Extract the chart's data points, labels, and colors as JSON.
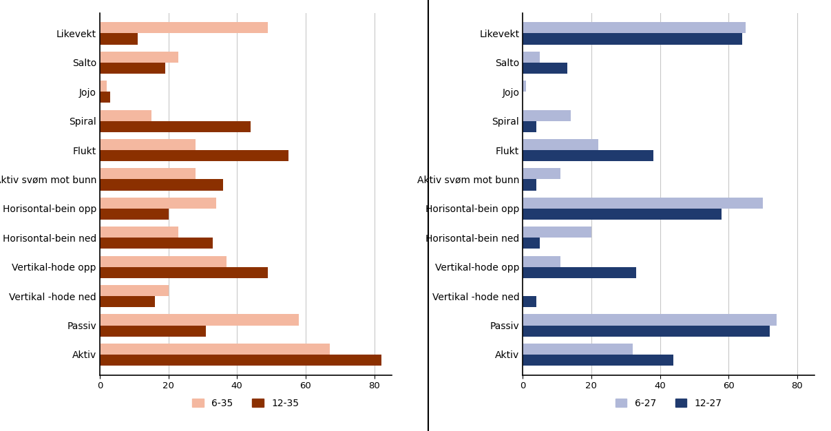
{
  "categories": [
    "Aktiv",
    "Passiv",
    "Vertikal -hode ned",
    "Vertikal-hode opp",
    "Horisontal-bein ned",
    "Horisontal-bein opp",
    "Aktiv svøm mot bunn",
    "Flukt",
    "Spiral",
    "Jojo",
    "Salto",
    "Likevekt"
  ],
  "left": {
    "series1_label": "6-35",
    "series2_label": "12-35",
    "series1_color": "#f4b8a0",
    "series2_color": "#8b3000",
    "series1_values": [
      67,
      58,
      20,
      37,
      23,
      34,
      28,
      28,
      15,
      2,
      23,
      49
    ],
    "series2_values": [
      82,
      31,
      16,
      49,
      33,
      20,
      36,
      55,
      44,
      3,
      19,
      11
    ],
    "xlim": [
      0,
      85
    ],
    "xticks": [
      0,
      20,
      40,
      60,
      80
    ]
  },
  "right": {
    "series1_label": "6-27",
    "series2_label": "12-27",
    "series1_color": "#b0b8d8",
    "series2_color": "#1f3a6e",
    "series1_values": [
      32,
      74,
      0,
      11,
      20,
      70,
      11,
      22,
      14,
      1,
      5,
      65
    ],
    "series2_values": [
      44,
      72,
      4,
      33,
      5,
      58,
      4,
      38,
      4,
      0,
      13,
      64
    ],
    "xlim": [
      0,
      85
    ],
    "xticks": [
      0,
      20,
      40,
      60,
      80
    ]
  },
  "bar_height": 0.38,
  "gridcolor": "#c8c8c8",
  "tick_fontsize": 9.5,
  "legend_fontsize": 10,
  "label_fontsize": 10,
  "fig_width": 12.07,
  "fig_height": 6.26,
  "fig_dpi": 100
}
